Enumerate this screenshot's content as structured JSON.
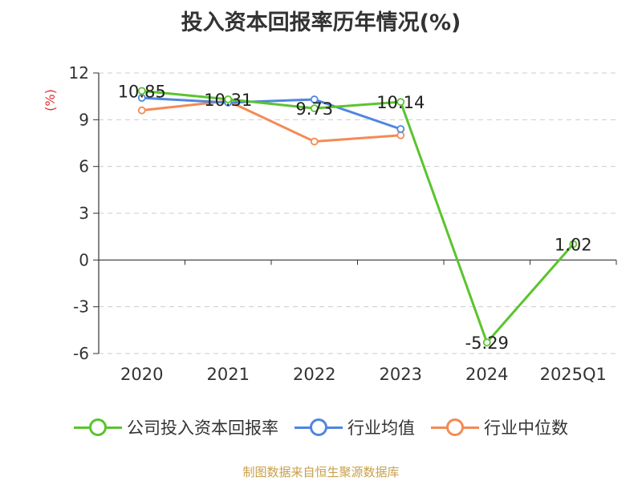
{
  "chart_data": {
    "type": "line",
    "title": "投入资本回报率历年情况(%)",
    "ylabel": "(%)",
    "xlabel": "",
    "categories": [
      "2020",
      "2021",
      "2022",
      "2023",
      "2024",
      "2025Q1"
    ],
    "ylim": [
      -6,
      12
    ],
    "yticks": [
      "12",
      "9",
      "6",
      "3",
      "0",
      "-3",
      "-6"
    ],
    "grid": true,
    "legend_position": "bottom",
    "series": [
      {
        "name": "公司投入资本回报率",
        "color": "#5ac42e",
        "values": [
          10.85,
          10.31,
          9.73,
          10.14,
          -5.29,
          1.02
        ],
        "labels": [
          "10.85",
          "10.31",
          "9.73",
          "10.14",
          "-5.29",
          "1.02"
        ]
      },
      {
        "name": "行业均值",
        "color": "#4f86df",
        "values": [
          10.4,
          10.1,
          10.3,
          8.4,
          null,
          null
        ]
      },
      {
        "name": "行业中位数",
        "color": "#f48a55",
        "values": [
          9.6,
          10.2,
          7.6,
          8.0,
          null,
          null
        ]
      }
    ]
  },
  "source": "制图数据来自恒生聚源数据库",
  "colors": {
    "axis": "#333333",
    "grid": "#cccccc",
    "ylabel": "#e03030"
  }
}
